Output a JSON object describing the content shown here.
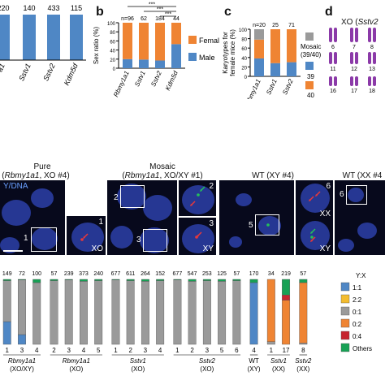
{
  "colors": {
    "blue": "#4f87c5",
    "orange": "#ef8433",
    "gray": "#9a9a9a",
    "yellow": "#f3bc2f",
    "red": "#c6252f",
    "green": "#17a155",
    "darkgray": "#777777",
    "nuclei": "#2b3fa8",
    "micro_bg": "#07091c"
  },
  "panel_a": {
    "n_labels": [
      "220",
      "140",
      "433",
      "115"
    ],
    "tick_labels": [
      "a1",
      "Sstv1",
      "Sstv2",
      "Kdm5d"
    ]
  },
  "panel_b": {
    "letter": "b",
    "ylabel": "Sex ratio (%)",
    "y_ticks": [
      "0",
      "20",
      "40",
      "60",
      "80",
      "100"
    ],
    "n_labels": [
      "n=96",
      "62",
      "184",
      "44"
    ],
    "sig": [
      "***",
      "***",
      "***"
    ],
    "legend": [
      "Female",
      "Male"
    ]
  },
  "panel_c": {
    "letter": "c",
    "ylabel": "Karyotypes for female mice (%)",
    "y_ticks": [
      "0",
      "20",
      "40",
      "60",
      "80",
      "100"
    ],
    "n_labels": [
      "n=20",
      "25",
      "71"
    ],
    "legend": [
      {
        "label": "Mosaic",
        "sub": "(39/40)"
      },
      {
        "label": "39",
        "sub": ""
      },
      {
        "label": "40",
        "sub": ""
      }
    ]
  },
  "panel_d": {
    "letter": "d",
    "title_prefix": "XO (",
    "title_gene": "Sstv2",
    "chrom_numbers": [
      "6",
      "7",
      "8",
      "11",
      "12",
      "13",
      "16",
      "17",
      "18"
    ]
  },
  "micro": {
    "stain_label": "Y/DNA",
    "groups": [
      {
        "title": "Pure",
        "subtitle_gene": "Rbmy1a1",
        "subtitle_rest": ", XO #4)",
        "open": "("
      },
      {
        "title": "Mosaic",
        "subtitle_gene": "Rbmy1a1",
        "subtitle_rest": ", XO/XY #1)",
        "open": "("
      },
      {
        "title": "WT (XY #4)",
        "subtitle_gene": "",
        "subtitle_rest": "",
        "open": ""
      },
      {
        "title": "WT (XX #4",
        "subtitle_gene": "",
        "subtitle_rest": "",
        "open": ""
      }
    ],
    "box_labels": [
      "1",
      "1",
      "2",
      "2",
      "3",
      "3",
      "5",
      "6",
      "6"
    ],
    "karyotype_labels": [
      "XO",
      "XY",
      "XY",
      "XX"
    ]
  },
  "chart_data": [
    {
      "type": "bar",
      "title": "",
      "ylabel": "Sex ratio (%)",
      "ylim": [
        0,
        100
      ],
      "categories": [
        "Rbmy1a1",
        "Sstv1",
        "Sstv2",
        "Kdm5d"
      ],
      "n": [
        "n=96",
        "62",
        "184",
        "44"
      ],
      "series": [
        {
          "name": "Male",
          "values": [
            20,
            19,
            17,
            53
          ]
        },
        {
          "name": "Female",
          "values": [
            80,
            81,
            83,
            47
          ]
        }
      ]
    },
    {
      "type": "bar",
      "ylabel": "Karyotypes for female mice (%)",
      "ylim": [
        0,
        100
      ],
      "categories": [
        "Rbmy1a1",
        "Sstv1",
        "Sstv2"
      ],
      "n": [
        "n=20",
        "25",
        "71"
      ],
      "series": [
        {
          "name": "Mosaic",
          "values": [
            22,
            0,
            0
          ]
        },
        {
          "name": "39",
          "values": [
            38,
            28,
            30
          ]
        },
        {
          "name": "40",
          "values": [
            40,
            72,
            70
          ]
        }
      ]
    },
    {
      "type": "bar",
      "legend_title": "Y:X",
      "legend": [
        "1:1",
        "2:2",
        "0:1",
        "0:2",
        "0:4",
        "Others"
      ],
      "n": [
        "149",
        "72",
        "100",
        "57",
        "239",
        "373",
        "240",
        "677",
        "611",
        "264",
        "152",
        "677",
        "547",
        "253",
        "125",
        "57",
        "170",
        "34",
        "219",
        "57"
      ],
      "bar_numbers": [
        "1",
        "3",
        "4",
        "2",
        "3",
        "4",
        "5",
        "1",
        "2",
        "3",
        "4",
        "1",
        "2",
        "3",
        "5",
        "6",
        "4",
        "1",
        "17",
        "8"
      ],
      "groups": [
        {
          "label": "Rbmy1a1",
          "sub": "(XO/XY)",
          "count": 3
        },
        {
          "label": "Rbmy1a1",
          "sub": "(XO)",
          "count": 4
        },
        {
          "label": "Sstv1",
          "sub": "(XO)",
          "count": 4
        },
        {
          "label": "Sstv2",
          "sub": "(XO)",
          "count": 5
        },
        {
          "label": "WT",
          "sub": "(XY)",
          "count": 1
        },
        {
          "label": "Sstv1",
          "sub": "(XX)",
          "count": 2
        },
        {
          "label": "Sstv2",
          "sub": "(XX)",
          "count": 1
        }
      ],
      "bars": [
        [
          35,
          0,
          63,
          0,
          0,
          2
        ],
        [
          15,
          0,
          84,
          0,
          0,
          1
        ],
        [
          0,
          0,
          95,
          0,
          0,
          5
        ],
        [
          0,
          0,
          98,
          0,
          0,
          2
        ],
        [
          0,
          0,
          99,
          0,
          0,
          1
        ],
        [
          0,
          0,
          97,
          0,
          0,
          3
        ],
        [
          0,
          0,
          98,
          0,
          0,
          2
        ],
        [
          0,
          0,
          99,
          0,
          0,
          1
        ],
        [
          0,
          0,
          98,
          0,
          0,
          2
        ],
        [
          0,
          0,
          97,
          0,
          0,
          3
        ],
        [
          0,
          0,
          98,
          0,
          0,
          2
        ],
        [
          0,
          0,
          99,
          0,
          0,
          1
        ],
        [
          0,
          0,
          97,
          0,
          0,
          3
        ],
        [
          0,
          0,
          98,
          0,
          0,
          2
        ],
        [
          0,
          0,
          97,
          0,
          0,
          3
        ],
        [
          0,
          0,
          98,
          0,
          0,
          2
        ],
        [
          95,
          0,
          0,
          0,
          0,
          5
        ],
        [
          0,
          0,
          4,
          96,
          0,
          0
        ],
        [
          0,
          0,
          0,
          68,
          8,
          24
        ],
        [
          0,
          0,
          2,
          93,
          0,
          5
        ]
      ]
    }
  ]
}
